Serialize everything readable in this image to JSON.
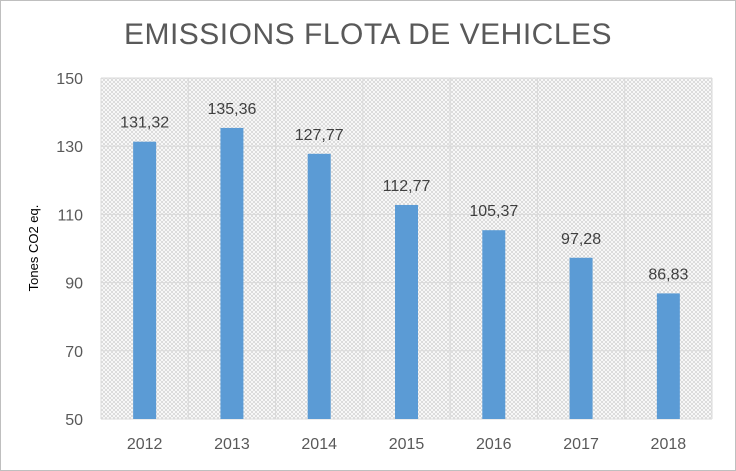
{
  "chart_data": {
    "type": "bar",
    "title": "EMISSIONS FLOTA DE VEHICLES",
    "xlabel": "",
    "ylabel": "Tones CO2 eq.",
    "categories": [
      "2012",
      "2013",
      "2014",
      "2015",
      "2016",
      "2017",
      "2018"
    ],
    "values": [
      131.32,
      135.36,
      127.77,
      112.77,
      105.37,
      97.28,
      86.83
    ],
    "value_labels": [
      "131,32",
      "135,36",
      "127,77",
      "112,77",
      "105,37",
      "97,28",
      "86,83"
    ],
    "ylim": [
      50,
      150
    ],
    "yticks": [
      50,
      70,
      90,
      110,
      130,
      150
    ],
    "grid": true,
    "bar_color": "#5b9bd5",
    "legend": "none"
  }
}
